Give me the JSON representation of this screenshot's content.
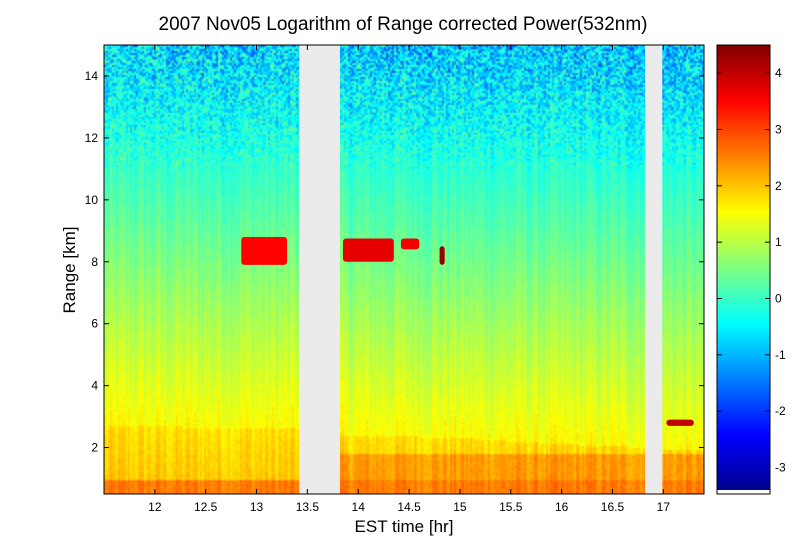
{
  "chart_data": {
    "type": "heatmap",
    "title": "2007 Nov05  Logarithm of Range corrected Power(532nm)",
    "xlabel": "EST time [hr]",
    "ylabel": "Range [km]",
    "xlim": [
      11.5,
      17.4
    ],
    "ylim": [
      0.5,
      15.0
    ],
    "x_ticks": [
      12,
      12.5,
      13,
      13.5,
      14,
      14.5,
      15,
      15.5,
      16,
      16.5,
      17
    ],
    "x_tick_labels": [
      "12",
      "12.5",
      "13",
      "13.5",
      "14",
      "14.5",
      "15",
      "15.5",
      "16",
      "16.5",
      "17"
    ],
    "y_ticks": [
      2,
      4,
      6,
      8,
      10,
      12,
      14
    ],
    "y_tick_labels": [
      "2",
      "4",
      "6",
      "8",
      "10",
      "12",
      "14"
    ],
    "colorbar": {
      "colormap": "jet",
      "clim": [
        -3.4,
        4.5
      ],
      "ticks": [
        -3,
        -2,
        -1,
        0,
        1,
        2,
        3,
        4
      ],
      "tick_labels": [
        "-3",
        "-2",
        "-1",
        "0",
        "1",
        "2",
        "3",
        "4"
      ]
    },
    "data_gaps_hr": [
      [
        13.42,
        13.82
      ],
      [
        16.82,
        16.99
      ]
    ],
    "boundary_layer_top_km": [
      {
        "x": 11.5,
        "y": 2.7
      },
      {
        "x": 13.4,
        "y": 2.6
      },
      {
        "x": 13.85,
        "y": 2.4
      },
      {
        "x": 15.0,
        "y": 2.3
      },
      {
        "x": 16.0,
        "y": 2.1
      },
      {
        "x": 16.8,
        "y": 2.0
      },
      {
        "x": 17.05,
        "y": 1.9
      }
    ],
    "cloud_layers": [
      {
        "x_start": 12.85,
        "x_end": 13.3,
        "y_bottom": 7.9,
        "y_top": 8.8,
        "value": 3.5
      },
      {
        "x_start": 13.85,
        "x_end": 14.35,
        "y_bottom": 8.0,
        "y_top": 8.75,
        "value": 3.7
      },
      {
        "x_start": 14.42,
        "x_end": 14.6,
        "y_bottom": 8.4,
        "y_top": 8.75,
        "value": 3.6
      },
      {
        "x_start": 14.8,
        "x_end": 14.85,
        "y_bottom": 7.9,
        "y_top": 8.5,
        "value": 4.3
      },
      {
        "x_start": 17.03,
        "x_end": 17.3,
        "y_bottom": 2.7,
        "y_top": 2.9,
        "value": 4.0
      }
    ]
  }
}
